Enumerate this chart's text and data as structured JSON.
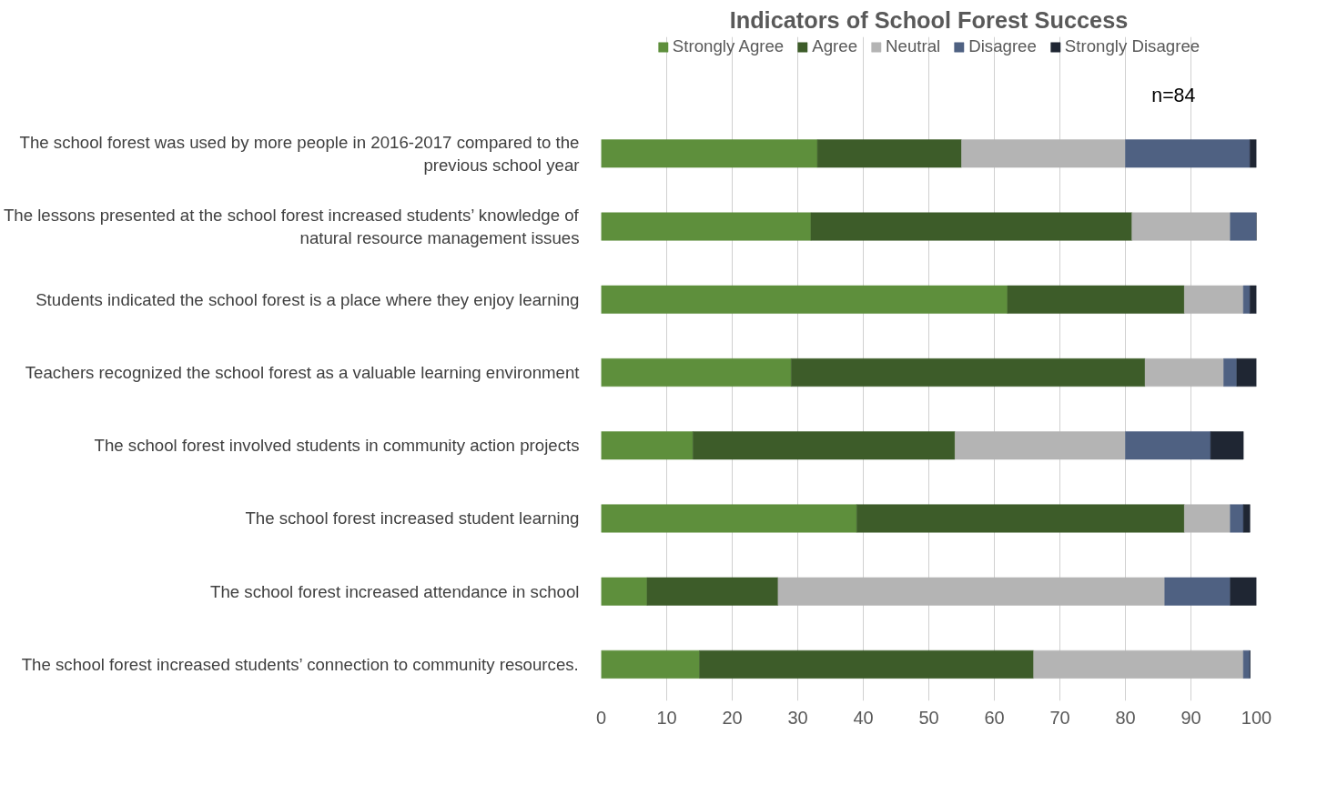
{
  "chart_data": {
    "type": "bar",
    "orientation": "horizontal",
    "stacked": true,
    "title": "Indicators of School Forest Success",
    "categories": [
      "The school forest was used by more people in 2016-2017 compared to the previous school year",
      "The lessons presented at the school forest increased students’ knowledge of natural resource management issues",
      "Students indicated the school forest is a place where they enjoy learning",
      "Teachers recognized the school forest as a valuable learning environment",
      "The school forest involved students in community action projects",
      "The school forest increased student learning",
      "The school forest increased attendance in school",
      "The school forest increased students’ connection to community resources."
    ],
    "series": [
      {
        "name": "Strongly Agree",
        "color": "#5e8f3c",
        "values": [
          33,
          32,
          62,
          29,
          14,
          39,
          7,
          15
        ]
      },
      {
        "name": "Agree",
        "color": "#3d5c29",
        "values": [
          22,
          49,
          27,
          54,
          40,
          50,
          20,
          51
        ]
      },
      {
        "name": "Neutral",
        "color": "#b4b4b4",
        "values": [
          25,
          15,
          9,
          12,
          26,
          7,
          59,
          32
        ]
      },
      {
        "name": "Disagree",
        "color": "#4f6182",
        "values": [
          19,
          4,
          1,
          2,
          13,
          2,
          10,
          1
        ]
      },
      {
        "name": "Strongly Disagree",
        "color": "#1f2633",
        "values": [
          1,
          0,
          1,
          3,
          5,
          1,
          4,
          0
        ]
      }
    ],
    "xlim": [
      0,
      100
    ],
    "xticks": [
      0,
      10,
      20,
      30,
      40,
      50,
      60,
      70,
      80,
      90,
      100
    ],
    "grid": "x",
    "legend": "top",
    "annotations": [
      "n=84"
    ]
  }
}
